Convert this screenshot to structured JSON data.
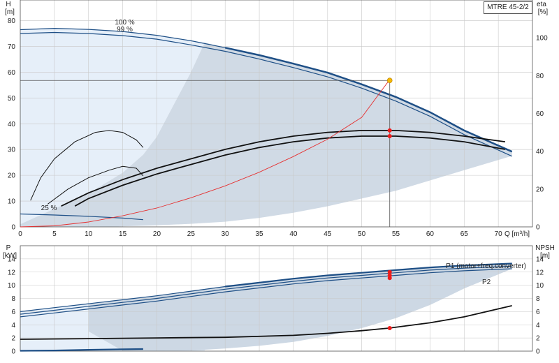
{
  "model": "MTRE 45-2/2",
  "top_panel": {
    "left_axis_title": "H",
    "left_axis_unit": "[m]",
    "right_axis_title": "eta",
    "right_axis_unit": "[%]",
    "x_axis_label": "Q [m³/h]",
    "curve_labels": {
      "c100": "100 %",
      "c99": "99 %",
      "c25": "25 %"
    }
  },
  "bottom_panel": {
    "left_axis_title": "P",
    "left_axis_unit": "[kW]",
    "right_axis_title": "NPSH",
    "right_axis_unit": "[m]",
    "curve_labels": {
      "p1": "P1 (motor+freq.converter)",
      "p2": "P2"
    }
  },
  "colors": {
    "curve_blue": "#1e4f86",
    "curve_light": "#dce6f1",
    "region_light": "#e6eff9",
    "region_shade": "#cdd8e4",
    "system_curve": "#e53030",
    "duty_point": "#f5b800",
    "marker_red": "#ee1c1c",
    "grid": "#c8c8c8"
  },
  "chart_data": [
    {
      "id": "head",
      "type": "line",
      "xlabel": "Q [m³/h]",
      "ylabel": "H [m]",
      "y2label": "eta [%]",
      "xlim": [
        0,
        75
      ],
      "ylim": [
        0,
        88
      ],
      "y2lim": [
        0,
        120
      ],
      "x_ticks": [
        0,
        5,
        10,
        15,
        20,
        25,
        30,
        35,
        40,
        45,
        50,
        55,
        60,
        65,
        70
      ],
      "y_ticks": [
        0,
        10,
        20,
        30,
        40,
        50,
        60,
        70,
        80
      ],
      "y2_ticks": [
        0,
        20,
        40,
        60,
        80,
        100
      ],
      "grid": true,
      "series": [
        {
          "name": "100 %",
          "kind": "head",
          "points": [
            [
              0,
              76.5
            ],
            [
              5,
              77
            ],
            [
              10,
              76.6
            ],
            [
              15,
              75.8
            ],
            [
              20,
              74.3
            ],
            [
              25,
              72.2
            ],
            [
              30,
              69.5
            ],
            [
              35,
              66.6
            ],
            [
              40,
              63.3
            ],
            [
              45,
              59.8
            ],
            [
              50,
              55.3
            ],
            [
              55,
              50.4
            ],
            [
              60,
              44.5
            ],
            [
              65,
              37.4
            ],
            [
              72,
              29.2
            ]
          ]
        },
        {
          "name": "99 %",
          "kind": "head",
          "points": [
            [
              0,
              75
            ],
            [
              5,
              75.4
            ],
            [
              10,
              75
            ],
            [
              15,
              74.2
            ],
            [
              20,
              72.8
            ],
            [
              25,
              70.6
            ],
            [
              30,
              68.1
            ],
            [
              35,
              65.1
            ],
            [
              40,
              61.8
            ],
            [
              45,
              58.2
            ],
            [
              50,
              53.8
            ],
            [
              55,
              48.8
            ],
            [
              60,
              42.9
            ],
            [
              65,
              35.8
            ],
            [
              72,
              27.4
            ]
          ]
        },
        {
          "name": "eta 100 %",
          "kind": "eta",
          "points": [
            [
              6,
              11
            ],
            [
              10,
              18
            ],
            [
              15,
              25
            ],
            [
              20,
              31
            ],
            [
              25,
              36
            ],
            [
              30,
              41
            ],
            [
              35,
              45
            ],
            [
              40,
              48
            ],
            [
              45,
              50
            ],
            [
              50,
              51
            ],
            [
              55,
              51
            ],
            [
              60,
              50
            ],
            [
              65,
              48
            ],
            [
              71,
              45
            ]
          ]
        },
        {
          "name": "eta 99 %",
          "kind": "eta",
          "points": [
            [
              8,
              11
            ],
            [
              10,
              15
            ],
            [
              15,
              22
            ],
            [
              20,
              28
            ],
            [
              25,
              33
            ],
            [
              30,
              38
            ],
            [
              35,
              42
            ],
            [
              40,
              45
            ],
            [
              45,
              47
            ],
            [
              50,
              48
            ],
            [
              55,
              48
            ],
            [
              60,
              47
            ],
            [
              65,
              45
            ],
            [
              71,
              41
            ]
          ]
        },
        {
          "name": "eta small upper",
          "kind": "eta",
          "points": [
            [
              1.5,
              14
            ],
            [
              3,
              26
            ],
            [
              5,
              36
            ],
            [
              8,
              45
            ],
            [
              11,
              50
            ],
            [
              13,
              51
            ],
            [
              15,
              50
            ],
            [
              17,
              46
            ],
            [
              18,
              42
            ]
          ]
        },
        {
          "name": "eta small lower",
          "kind": "eta",
          "points": [
            [
              4,
              12
            ],
            [
              7,
              20
            ],
            [
              10,
              26
            ],
            [
              13,
              30
            ],
            [
              15,
              32
            ],
            [
              17,
              31
            ],
            [
              18,
              27
            ]
          ]
        },
        {
          "name": "25 %",
          "kind": "head",
          "points": [
            [
              0,
              5
            ],
            [
              5,
              4.6
            ],
            [
              10,
              4.1
            ],
            [
              15,
              3.4
            ],
            [
              18,
              2.8
            ]
          ]
        },
        {
          "name": "system curve",
          "kind": "head",
          "points": [
            [
              0,
              0
            ],
            [
              5,
              0.4
            ],
            [
              10,
              1.9
            ],
            [
              15,
              4.3
            ],
            [
              20,
              7.3
            ],
            [
              25,
              11.3
            ],
            [
              30,
              15.9
            ],
            [
              35,
              21.2
            ],
            [
              40,
              27.3
            ],
            [
              45,
              34
            ],
            [
              50,
              42.5
            ],
            [
              54,
              56.8
            ]
          ]
        }
      ],
      "duty_point": {
        "x": 54.1,
        "y": 56.8
      },
      "eta_markers": [
        [
          54.1,
          51
        ],
        [
          54.1,
          48
        ]
      ]
    },
    {
      "id": "power",
      "type": "line",
      "xlabel": "Q [m³/h]",
      "ylabel": "P [kW]",
      "y2label": "NPSH [m]",
      "xlim": [
        0,
        75
      ],
      "ylim": [
        0,
        16
      ],
      "y2lim": [
        0,
        16
      ],
      "y_ticks": [
        0,
        2,
        4,
        6,
        8,
        10,
        12,
        14
      ],
      "y2_ticks": [
        0,
        2,
        4,
        6,
        8,
        10,
        12,
        14
      ],
      "grid": true,
      "series": [
        {
          "name": "P1 (motor+freq.converter)",
          "kind": "power",
          "points": [
            [
              0,
              6
            ],
            [
              5,
              6.6
            ],
            [
              10,
              7.2
            ],
            [
              15,
              7.8
            ],
            [
              20,
              8.4
            ],
            [
              25,
              9.1
            ],
            [
              30,
              9.8
            ],
            [
              35,
              10.4
            ],
            [
              40,
              11
            ],
            [
              45,
              11.5
            ],
            [
              50,
              11.9
            ],
            [
              55,
              12.3
            ],
            [
              60,
              12.7
            ],
            [
              65,
              13
            ],
            [
              72,
              13.3
            ]
          ]
        },
        {
          "name": "P1 99 %",
          "kind": "power",
          "points": [
            [
              0,
              5.6
            ],
            [
              5,
              6.2
            ],
            [
              10,
              6.8
            ],
            [
              15,
              7.4
            ],
            [
              20,
              8
            ],
            [
              25,
              8.7
            ],
            [
              30,
              9.4
            ],
            [
              35,
              10
            ],
            [
              40,
              10.6
            ],
            [
              45,
              11.1
            ],
            [
              50,
              11.5
            ],
            [
              55,
              11.9
            ],
            [
              60,
              12.3
            ],
            [
              65,
              12.6
            ],
            [
              72,
              12.9
            ]
          ]
        },
        {
          "name": "P2",
          "kind": "power",
          "points": [
            [
              0,
              5.2
            ],
            [
              5,
              5.8
            ],
            [
              10,
              6.4
            ],
            [
              15,
              7
            ],
            [
              20,
              7.6
            ],
            [
              25,
              8.3
            ],
            [
              30,
              9
            ],
            [
              35,
              9.6
            ],
            [
              40,
              10.2
            ],
            [
              45,
              10.7
            ],
            [
              50,
              11.1
            ],
            [
              55,
              11.5
            ],
            [
              60,
              11.9
            ],
            [
              65,
              12.2
            ],
            [
              72,
              12.5
            ]
          ]
        },
        {
          "name": "NPSH",
          "kind": "npsh",
          "points": [
            [
              0,
              1.8
            ],
            [
              10,
              1.9
            ],
            [
              20,
              2
            ],
            [
              30,
              2.1
            ],
            [
              40,
              2.4
            ],
            [
              45,
              2.7
            ],
            [
              50,
              3.1
            ],
            [
              54,
              3.5
            ],
            [
              60,
              4.3
            ],
            [
              65,
              5.2
            ],
            [
              72,
              6.9
            ]
          ]
        },
        {
          "name": "power 25 %",
          "kind": "power",
          "points": [
            [
              0,
              0.05
            ],
            [
              5,
              0.1
            ],
            [
              10,
              0.2
            ],
            [
              15,
              0.28
            ],
            [
              18,
              0.32
            ]
          ]
        }
      ],
      "markers": [
        [
          54.1,
          12
        ],
        [
          54.1,
          11.5
        ],
        [
          54.1,
          11.1
        ],
        [
          54.1,
          3.5
        ]
      ]
    }
  ]
}
